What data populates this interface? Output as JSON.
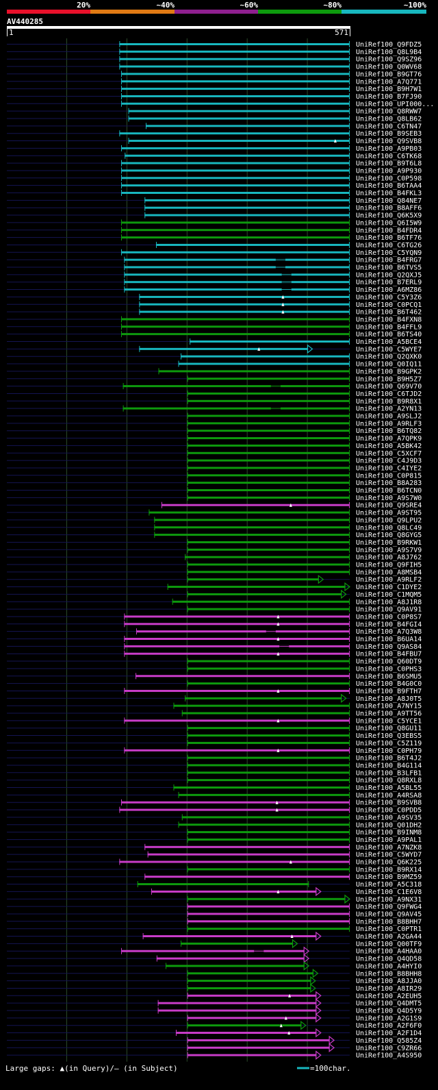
{
  "scale_bar": {
    "labels": [
      "20%",
      "~40%",
      "~60%",
      "~80%",
      "~100%"
    ],
    "colors": [
      "#e8102a",
      "#e07a14",
      "#8e1f8e",
      "#0d9a0d",
      "#18b7bf"
    ]
  },
  "query": {
    "name": "AV440285",
    "start_label": "1",
    "end_label": "571",
    "length": 571
  },
  "legend": {
    "gaps_text": "Large gaps: ▲(in Query)/— (in Subject)",
    "scale_text": "=100char."
  },
  "chart_data": {
    "type": "alignment",
    "title": "AV440285",
    "x_range": [
      1,
      571
    ],
    "class_colors": {
      "C": "#18b7bf",
      "G": "#0d9a0d",
      "P": "#c93cc9"
    },
    "hits": [
      {
        "label": "UniRef100_Q9FDZ5",
        "s": 188,
        "e": 571,
        "c": "C"
      },
      {
        "label": "UniRef100_Q8L9B4",
        "s": 188,
        "e": 571,
        "c": "C"
      },
      {
        "label": "UniRef100_Q9SZ96",
        "s": 188,
        "e": 571,
        "c": "C"
      },
      {
        "label": "UniRef100_Q0WV68",
        "s": 188,
        "e": 571,
        "c": "C"
      },
      {
        "label": "UniRef100_B9GT76",
        "s": 191,
        "e": 571,
        "c": "C"
      },
      {
        "label": "UniRef100_A7Q771",
        "s": 191,
        "e": 571,
        "c": "C"
      },
      {
        "label": "UniRef100_B9H7W1",
        "s": 191,
        "e": 571,
        "c": "C"
      },
      {
        "label": "UniRef100_B7FJ90",
        "s": 191,
        "e": 571,
        "c": "C"
      },
      {
        "label": "UniRef100_UPI000...",
        "s": 191,
        "e": 571,
        "c": "C"
      },
      {
        "label": "UniRef100_Q8RWW7",
        "s": 203,
        "e": 571,
        "c": "C"
      },
      {
        "label": "UniRef100_Q8LB62",
        "s": 203,
        "e": 571,
        "c": "C"
      },
      {
        "label": "UniRef100_C6TN47",
        "s": 232,
        "e": 571,
        "c": "C"
      },
      {
        "label": "UniRef100_B9SEB3",
        "s": 188,
        "e": 571,
        "c": "C"
      },
      {
        "label": "UniRef100_Q9SVB8",
        "s": 203,
        "e": 571,
        "c": "C",
        "q": [
          547
        ]
      },
      {
        "label": "UniRef100_A9PB03",
        "s": 191,
        "e": 571,
        "c": "C"
      },
      {
        "label": "UniRef100_C6TK68",
        "s": 197,
        "e": 571,
        "c": "C"
      },
      {
        "label": "UniRef100_B9T6L8",
        "s": 191,
        "e": 571,
        "c": "C"
      },
      {
        "label": "UniRef100_A9P930",
        "s": 191,
        "e": 571,
        "c": "C"
      },
      {
        "label": "UniRef100_C0P598",
        "s": 191,
        "e": 571,
        "c": "C"
      },
      {
        "label": "UniRef100_B6TAA4",
        "s": 191,
        "e": 571,
        "c": "C"
      },
      {
        "label": "UniRef100_B4FKL3",
        "s": 191,
        "e": 571,
        "c": "C"
      },
      {
        "label": "UniRef100_Q84NE7",
        "s": 230,
        "e": 571,
        "c": "C"
      },
      {
        "label": "UniRef100_B8AFF6",
        "s": 230,
        "e": 571,
        "c": "C"
      },
      {
        "label": "UniRef100_Q6K5X9",
        "s": 230,
        "e": 571,
        "c": "C"
      },
      {
        "label": "UniRef100_Q6I5W9",
        "s": 191,
        "e": 571,
        "c": "G"
      },
      {
        "label": "UniRef100_B4FDR4",
        "s": 191,
        "e": 571,
        "c": "G"
      },
      {
        "label": "UniRef100_B6TF76",
        "s": 191,
        "e": 571,
        "c": "G"
      },
      {
        "label": "UniRef100_C6TG26",
        "s": 249,
        "e": 571,
        "c": "C"
      },
      {
        "label": "UniRef100_C5YQN9",
        "s": 191,
        "e": 571,
        "c": "C"
      },
      {
        "label": "UniRef100_B4FRG7",
        "s": 196,
        "e": 571,
        "c": "C",
        "g": [
          [
            448,
            464
          ]
        ]
      },
      {
        "label": "UniRef100_B6TVS5",
        "s": 196,
        "e": 571,
        "c": "C",
        "g": [
          [
            448,
            464
          ]
        ]
      },
      {
        "label": "UniRef100_Q2QXJ5",
        "s": 196,
        "e": 571,
        "c": "C",
        "g": [
          [
            458,
            474
          ]
        ]
      },
      {
        "label": "UniRef100_B7ERL9",
        "s": 196,
        "e": 571,
        "c": "C",
        "g": [
          [
            458,
            474
          ]
        ]
      },
      {
        "label": "UniRef100_A6MZ86",
        "s": 196,
        "e": 571,
        "c": "C",
        "g": [
          [
            458,
            474
          ]
        ]
      },
      {
        "label": "UniRef100_C5Y3Z6",
        "s": 221,
        "e": 571,
        "c": "C",
        "q": [
          460
        ]
      },
      {
        "label": "UniRef100_C0PCQ1",
        "s": 221,
        "e": 571,
        "c": "C",
        "q": [
          460
        ]
      },
      {
        "label": "UniRef100_B6T462",
        "s": 221,
        "e": 571,
        "c": "C",
        "q": [
          460
        ]
      },
      {
        "label": "UniRef100_B4FXN8",
        "s": 191,
        "e": 571,
        "c": "G"
      },
      {
        "label": "UniRef100_B4FFL9",
        "s": 191,
        "e": 571,
        "c": "G"
      },
      {
        "label": "UniRef100_B6TS40",
        "s": 191,
        "e": 571,
        "c": "G"
      },
      {
        "label": "UniRef100_A5BCE4",
        "s": 305,
        "e": 571,
        "c": "C"
      },
      {
        "label": "UniRef100_C5WYE7",
        "s": 221,
        "e": 509,
        "c": "C",
        "q": [
          420
        ],
        "tip": true
      },
      {
        "label": "UniRef100_Q2QXK0",
        "s": 290,
        "e": 571,
        "c": "C"
      },
      {
        "label": "UniRef100_Q0IQ11",
        "s": 286,
        "e": 571,
        "c": "C"
      },
      {
        "label": "UniRef100_B9GPK2",
        "s": 253,
        "e": 571,
        "c": "G"
      },
      {
        "label": "UniRef100_B9H5Z7",
        "s": 301,
        "e": 571,
        "c": "G"
      },
      {
        "label": "UniRef100_Q69V70",
        "s": 194,
        "e": 571,
        "c": "G",
        "g": [
          [
            440,
            456
          ]
        ]
      },
      {
        "label": "UniRef100_C6TJD2",
        "s": 301,
        "e": 571,
        "c": "G"
      },
      {
        "label": "UniRef100_B9R8X1",
        "s": 301,
        "e": 571,
        "c": "G"
      },
      {
        "label": "UniRef100_A2YN13",
        "s": 194,
        "e": 571,
        "c": "G",
        "g": [
          [
            440,
            456
          ]
        ]
      },
      {
        "label": "UniRef100_A9SLJ2",
        "s": 301,
        "e": 571,
        "c": "G"
      },
      {
        "label": "UniRef100_A9RLF3",
        "s": 301,
        "e": 571,
        "c": "G"
      },
      {
        "label": "UniRef100_B6TQ82",
        "s": 301,
        "e": 571,
        "c": "G"
      },
      {
        "label": "UniRef100_A7QPK9",
        "s": 301,
        "e": 571,
        "c": "G"
      },
      {
        "label": "UniRef100_A5BK42",
        "s": 301,
        "e": 571,
        "c": "G"
      },
      {
        "label": "UniRef100_C5XCF7",
        "s": 301,
        "e": 571,
        "c": "G"
      },
      {
        "label": "UniRef100_C4J9D3",
        "s": 301,
        "e": 571,
        "c": "G"
      },
      {
        "label": "UniRef100_C4IYE2",
        "s": 301,
        "e": 571,
        "c": "G"
      },
      {
        "label": "UniRef100_C0P815",
        "s": 301,
        "e": 571,
        "c": "G"
      },
      {
        "label": "UniRef100_B8A283",
        "s": 301,
        "e": 571,
        "c": "G"
      },
      {
        "label": "UniRef100_B6TCN0",
        "s": 301,
        "e": 571,
        "c": "G"
      },
      {
        "label": "UniRef100_A9S7W0",
        "s": 301,
        "e": 571,
        "c": "G"
      },
      {
        "label": "UniRef100_Q9SRE4",
        "s": 258,
        "e": 571,
        "c": "P",
        "q": [
          473
        ]
      },
      {
        "label": "UniRef100_A9ST95",
        "s": 237,
        "e": 571,
        "c": "G"
      },
      {
        "label": "UniRef100_Q9LPU2",
        "s": 246,
        "e": 571,
        "c": "G"
      },
      {
        "label": "UniRef100_Q8LC49",
        "s": 246,
        "e": 571,
        "c": "G"
      },
      {
        "label": "UniRef100_Q8GYG5",
        "s": 246,
        "e": 571,
        "c": "G"
      },
      {
        "label": "UniRef100_B9RKW1",
        "s": 301,
        "e": 571,
        "c": "G"
      },
      {
        "label": "UniRef100_A9S7V9",
        "s": 301,
        "e": 571,
        "c": "G"
      },
      {
        "label": "UniRef100_A8J762",
        "s": 297,
        "e": 571,
        "c": "G"
      },
      {
        "label": "UniRef100_Q9FIH5",
        "s": 301,
        "e": 571,
        "c": "G"
      },
      {
        "label": "UniRef100_A8MSB4",
        "s": 301,
        "e": 571,
        "c": "G"
      },
      {
        "label": "UniRef100_A9RLF2",
        "s": 301,
        "e": 527,
        "c": "G",
        "tip": true
      },
      {
        "label": "UniRef100_C1DYE2",
        "s": 268,
        "e": 571,
        "c": "G",
        "tip": true
      },
      {
        "label": "UniRef100_C1MQM5",
        "s": 301,
        "e": 565,
        "c": "G",
        "tip": true
      },
      {
        "label": "UniRef100_A8J1R8",
        "s": 276,
        "e": 571,
        "c": "G"
      },
      {
        "label": "UniRef100_Q9AV91",
        "s": 301,
        "e": 571,
        "c": "G"
      },
      {
        "label": "UniRef100_C0P8S7",
        "s": 196,
        "e": 571,
        "c": "P",
        "q": [
          452
        ]
      },
      {
        "label": "UniRef100_B4FGI4",
        "s": 196,
        "e": 571,
        "c": "P",
        "q": [
          452
        ]
      },
      {
        "label": "UniRef100_A7Q3W8",
        "s": 216,
        "e": 571,
        "c": "P",
        "g": [
          [
            432,
            448
          ]
        ]
      },
      {
        "label": "UniRef100_B6UA14",
        "s": 196,
        "e": 571,
        "c": "P",
        "q": [
          452
        ]
      },
      {
        "label": "UniRef100_Q9AS84",
        "s": 196,
        "e": 571,
        "c": "P",
        "g": [
          [
            454,
            470
          ]
        ]
      },
      {
        "label": "UniRef100_B4FBU7",
        "s": 196,
        "e": 571,
        "c": "P",
        "q": [
          452
        ]
      },
      {
        "label": "UniRef100_Q60DT9",
        "s": 301,
        "e": 571,
        "c": "G"
      },
      {
        "label": "UniRef100_C0PHS3",
        "s": 301,
        "e": 571,
        "c": "G"
      },
      {
        "label": "UniRef100_B6SMU5",
        "s": 215,
        "e": 571,
        "c": "P"
      },
      {
        "label": "UniRef100_B4G0C0",
        "s": 301,
        "e": 571,
        "c": "G"
      },
      {
        "label": "UniRef100_B9FTH7",
        "s": 196,
        "e": 571,
        "c": "P",
        "q": [
          452
        ]
      },
      {
        "label": "UniRef100_A8J0T5",
        "s": 297,
        "e": 565,
        "c": "G",
        "tip": true
      },
      {
        "label": "UniRef100_A7NY15",
        "s": 278,
        "e": 571,
        "c": "G"
      },
      {
        "label": "UniRef100_A9TT56",
        "s": 292,
        "e": 571,
        "c": "G"
      },
      {
        "label": "UniRef100_C5YCE1",
        "s": 196,
        "e": 571,
        "c": "P",
        "q": [
          452
        ]
      },
      {
        "label": "UniRef100_Q8GU11",
        "s": 301,
        "e": 571,
        "c": "G"
      },
      {
        "label": "UniRef100_Q3EBS5",
        "s": 301,
        "e": 571,
        "c": "G"
      },
      {
        "label": "UniRef100_C5Z119",
        "s": 301,
        "e": 571,
        "c": "G"
      },
      {
        "label": "UniRef100_C0PH79",
        "s": 196,
        "e": 571,
        "c": "P",
        "q": [
          452
        ]
      },
      {
        "label": "UniRef100_B6T4J2",
        "s": 301,
        "e": 571,
        "c": "G"
      },
      {
        "label": "UniRef100_B4G114",
        "s": 301,
        "e": 571,
        "c": "G"
      },
      {
        "label": "UniRef100_B3LFB1",
        "s": 301,
        "e": 571,
        "c": "G"
      },
      {
        "label": "UniRef100_Q8RXL8",
        "s": 301,
        "e": 571,
        "c": "G"
      },
      {
        "label": "UniRef100_A5BL55",
        "s": 278,
        "e": 571,
        "c": "G"
      },
      {
        "label": "UniRef100_A4RSA8",
        "s": 286,
        "e": 571,
        "c": "G"
      },
      {
        "label": "UniRef100_B9SVB8",
        "s": 191,
        "e": 571,
        "c": "P",
        "q": [
          450
        ]
      },
      {
        "label": "UniRef100_C0PDD5",
        "s": 188,
        "e": 571,
        "c": "P",
        "q": [
          450
        ]
      },
      {
        "label": "UniRef100_A9SV35",
        "s": 292,
        "e": 571,
        "c": "G"
      },
      {
        "label": "UniRef100_Q01DH2",
        "s": 286,
        "e": 571,
        "c": "G"
      },
      {
        "label": "UniRef100_B9INM8",
        "s": 301,
        "e": 571,
        "c": "G"
      },
      {
        "label": "UniRef100_A9PAL1",
        "s": 301,
        "e": 571,
        "c": "G"
      },
      {
        "label": "UniRef100_A7NZK8",
        "s": 230,
        "e": 571,
        "c": "P"
      },
      {
        "label": "UniRef100_C5WYD7",
        "s": 235,
        "e": 571,
        "c": "P"
      },
      {
        "label": "UniRef100_Q6K225",
        "s": 188,
        "e": 571,
        "c": "P",
        "q": [
          473
        ]
      },
      {
        "label": "UniRef100_B9RX14",
        "s": 301,
        "e": 571,
        "c": "G"
      },
      {
        "label": "UniRef100_B9MZ59",
        "s": 230,
        "e": 571,
        "c": "P"
      },
      {
        "label": "UniRef100_A5C318",
        "s": 218,
        "e": 503,
        "c": "G"
      },
      {
        "label": "UniRef100_C1E6V8",
        "s": 241,
        "e": 523,
        "c": "P",
        "q": [
          452
        ],
        "tip": true
      },
      {
        "label": "UniRef100_A9NX31",
        "s": 301,
        "e": 571,
        "c": "G",
        "tip": true
      },
      {
        "label": "UniRef100_Q9FWG4",
        "s": 301,
        "e": 571,
        "c": "P"
      },
      {
        "label": "UniRef100_Q9AV45",
        "s": 301,
        "e": 571,
        "c": "P"
      },
      {
        "label": "UniRef100_B8BHH7",
        "s": 301,
        "e": 571,
        "c": "P"
      },
      {
        "label": "UniRef100_C0PTR1",
        "s": 301,
        "e": 571,
        "c": "G"
      },
      {
        "label": "UniRef100_A2GA44",
        "s": 227,
        "e": 523,
        "c": "P",
        "q": [
          475
        ],
        "tip": true
      },
      {
        "label": "UniRef100_Q00TF9",
        "s": 290,
        "e": 484,
        "c": "G",
        "tip": true
      },
      {
        "label": "UniRef100_A4HAA0",
        "s": 191,
        "e": 503,
        "c": "P",
        "g": [
          [
            412,
            428
          ]
        ],
        "tip": true
      },
      {
        "label": "UniRef100_Q4QD58",
        "s": 250,
        "e": 503,
        "c": "P",
        "tip": true
      },
      {
        "label": "UniRef100_A4HYI0",
        "s": 265,
        "e": 503,
        "c": "G",
        "tip": true
      },
      {
        "label": "UniRef100_B8BHH8",
        "s": 301,
        "e": 518,
        "c": "G",
        "tip": true
      },
      {
        "label": "UniRef100_A8JJA0",
        "s": 301,
        "e": 514,
        "c": "G",
        "tip": true
      },
      {
        "label": "UniRef100_A8IR29",
        "s": 301,
        "e": 514,
        "c": "G",
        "tip": true
      },
      {
        "label": "UniRef100_A2EUH5",
        "s": 301,
        "e": 523,
        "c": "P",
        "q": [
          471
        ],
        "tip": true
      },
      {
        "label": "UniRef100_Q4DMT5",
        "s": 252,
        "e": 523,
        "c": "P",
        "tip": true
      },
      {
        "label": "UniRef100_Q4D5Y9",
        "s": 252,
        "e": 523,
        "c": "P",
        "tip": true
      },
      {
        "label": "UniRef100_A2G1S9",
        "s": 301,
        "e": 523,
        "c": "P",
        "q": [
          465
        ],
        "tip": true
      },
      {
        "label": "UniRef100_A2F6F0",
        "s": 301,
        "e": 498,
        "c": "G",
        "q": [
          457
        ],
        "tip": true
      },
      {
        "label": "UniRef100_A2F1D4",
        "s": 282,
        "e": 523,
        "c": "P",
        "q": [
          470
        ],
        "tip": true
      },
      {
        "label": "UniRef100_Q585Z4",
        "s": 301,
        "e": 545,
        "c": "P",
        "tip": true
      },
      {
        "label": "UniRef100_C9ZR66",
        "s": 301,
        "e": 545,
        "c": "P",
        "tip": true
      },
      {
        "label": "UniRef100_A4S950",
        "s": 301,
        "e": 523,
        "c": "P",
        "tip": true
      }
    ]
  }
}
